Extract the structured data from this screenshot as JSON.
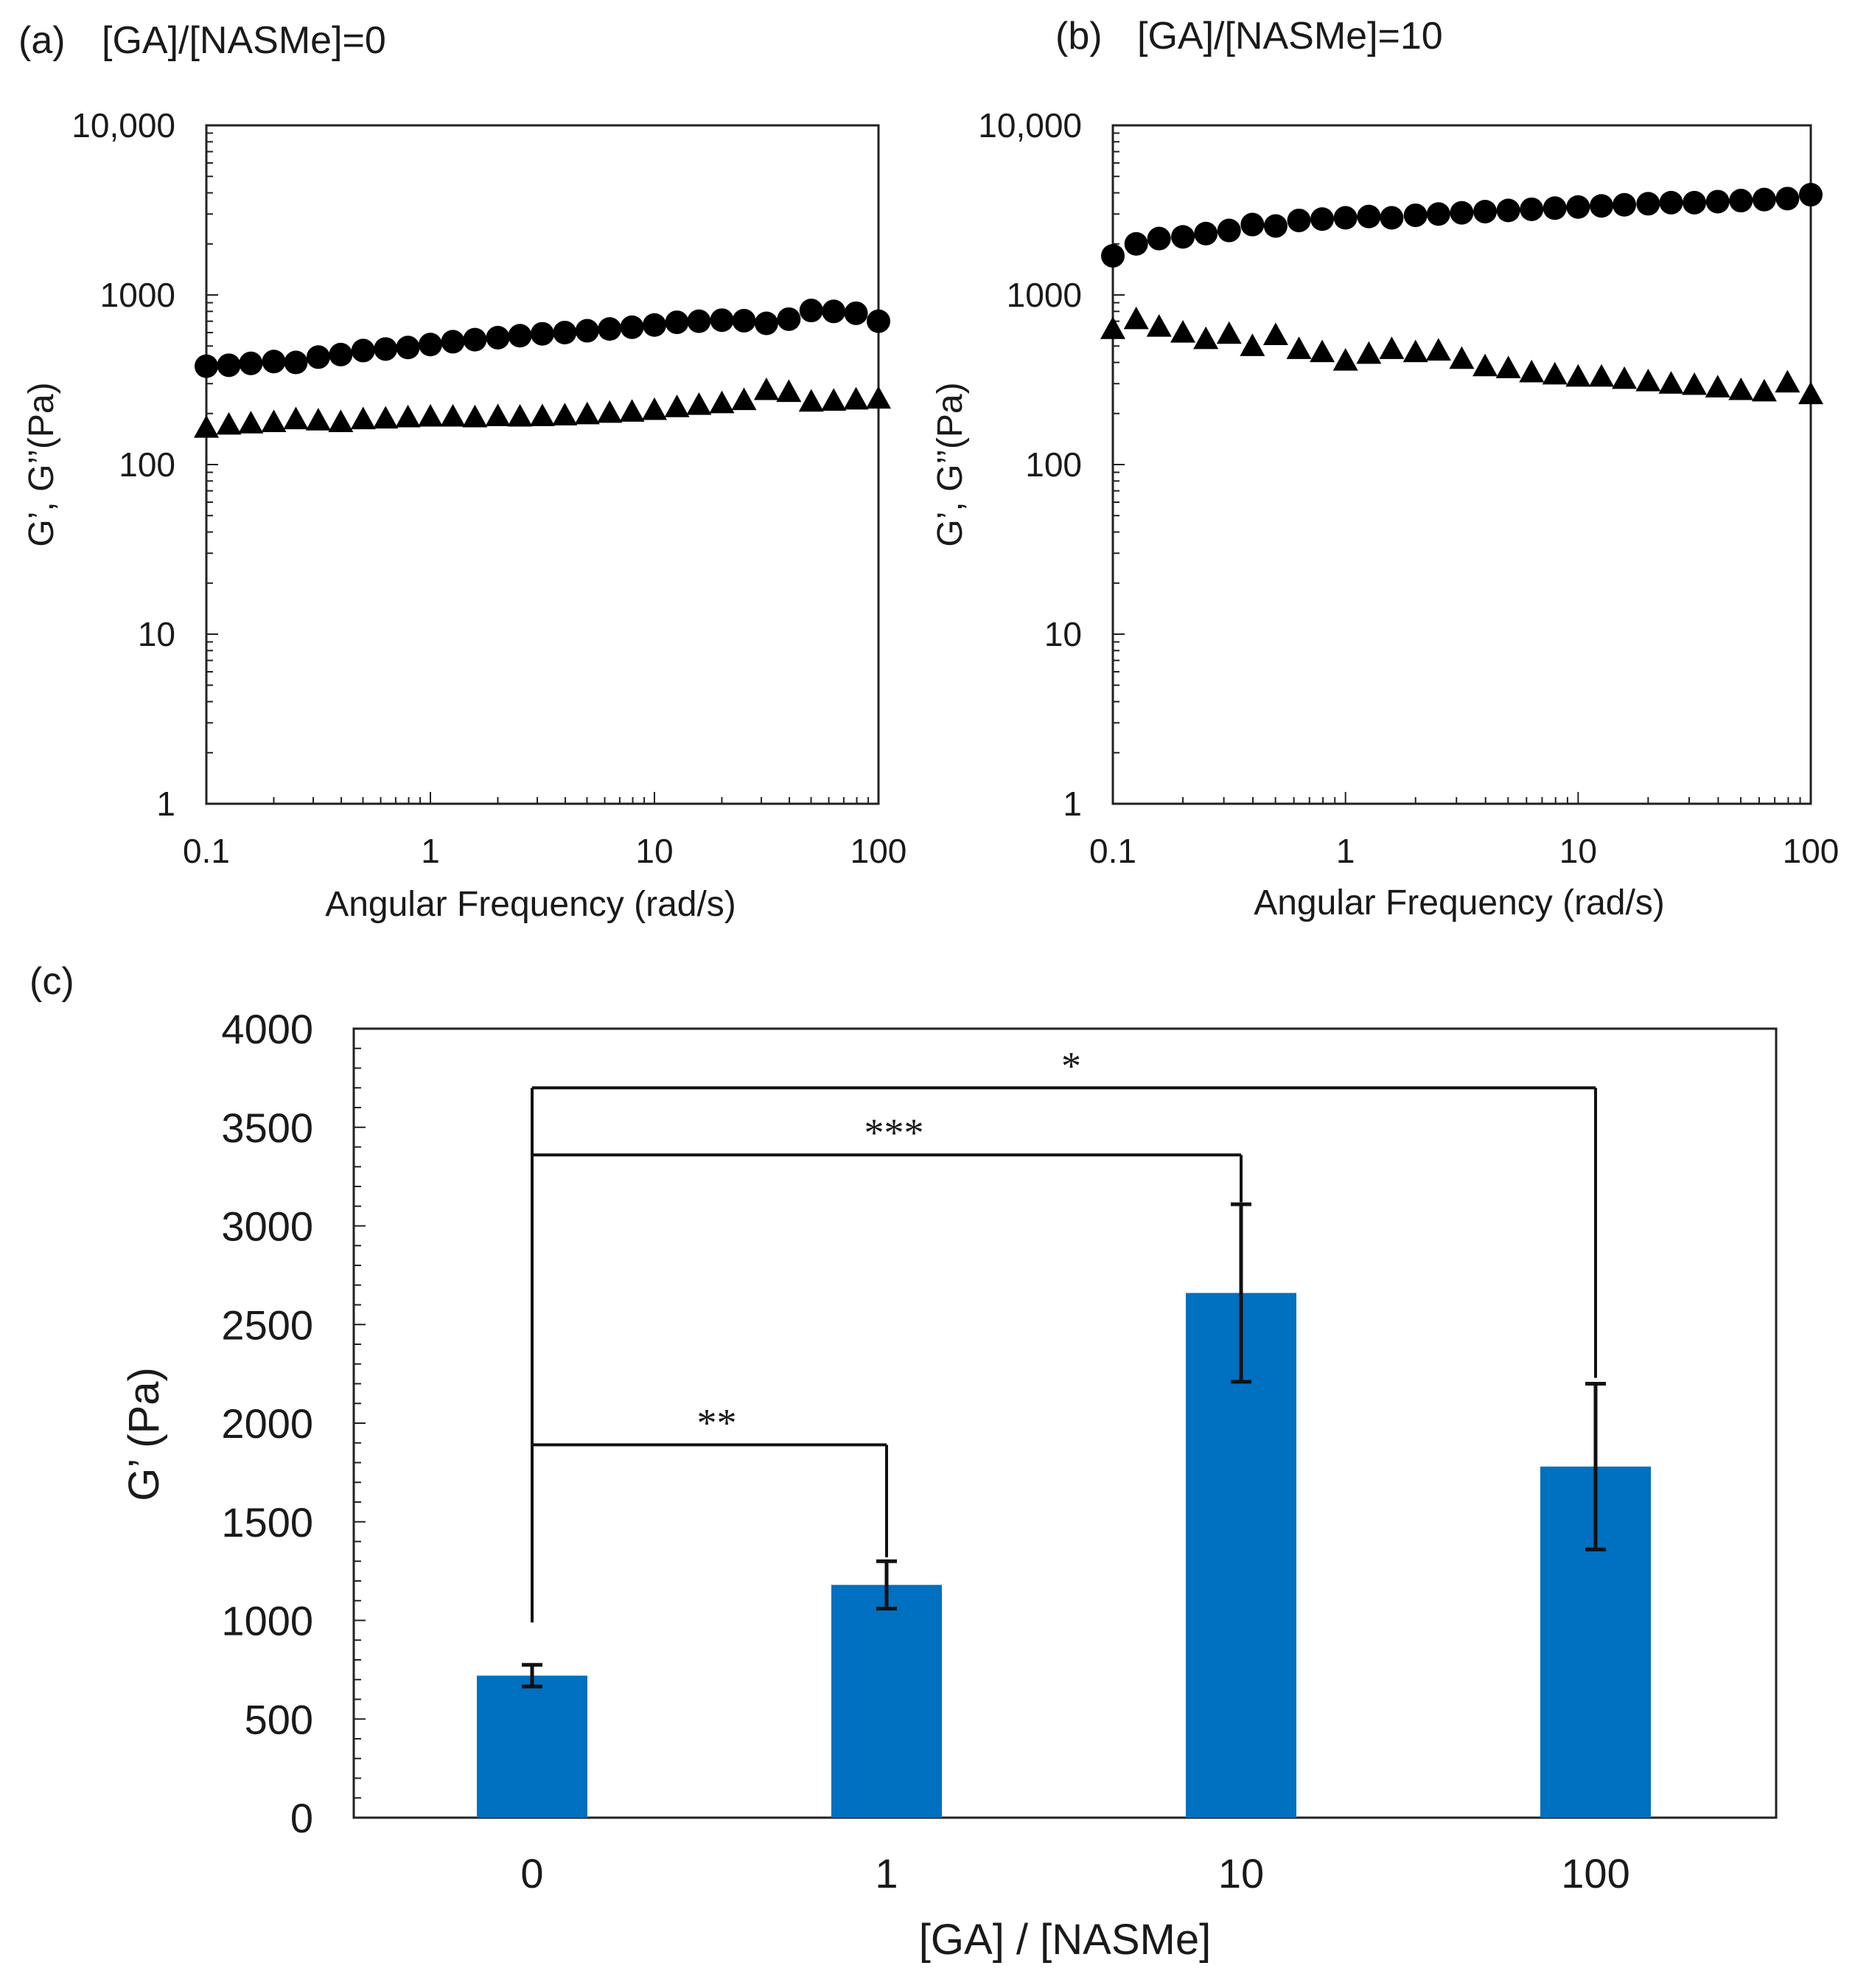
{
  "chart_data": [
    {
      "id": "a",
      "type": "scatter",
      "panel_label": "(a)",
      "title": "[GA]/[NASMe]=0",
      "xlabel": "Angular Frequency (rad/s)",
      "ylabel": "G’, G’’(Pa)",
      "xscale": "log",
      "yscale": "log",
      "xlim": [
        0.1,
        100
      ],
      "ylim": [
        1,
        10000
      ],
      "xticks": [
        0.1,
        1,
        10,
        100
      ],
      "xtick_labels": [
        "0.1",
        "1",
        "10",
        "100"
      ],
      "yticks": [
        1,
        10,
        100,
        1000,
        10000
      ],
      "ytick_labels": [
        "1",
        "10",
        "100",
        "1000",
        "10,000"
      ],
      "series": [
        {
          "name": "G'",
          "marker": "circle",
          "x": [
            0.1,
            0.126,
            0.158,
            0.2,
            0.251,
            0.316,
            0.398,
            0.501,
            0.631,
            0.794,
            1,
            1.26,
            1.58,
            2,
            2.51,
            3.16,
            3.98,
            5.01,
            6.31,
            7.94,
            10,
            12.6,
            15.8,
            20,
            25.1,
            31.6,
            39.8,
            50.1,
            63.1,
            79.4,
            100
          ],
          "y": [
            380,
            385,
            395,
            405,
            400,
            430,
            445,
            470,
            480,
            490,
            510,
            530,
            545,
            560,
            575,
            590,
            600,
            615,
            630,
            645,
            665,
            690,
            700,
            710,
            705,
            680,
            720,
            810,
            800,
            780,
            700
          ]
        },
        {
          "name": "G''",
          "marker": "triangle",
          "x": [
            0.1,
            0.126,
            0.158,
            0.2,
            0.251,
            0.316,
            0.398,
            0.501,
            0.631,
            0.794,
            1,
            1.26,
            1.58,
            2,
            2.51,
            3.16,
            3.98,
            5.01,
            6.31,
            7.94,
            10,
            12.6,
            15.8,
            20,
            25.1,
            31.6,
            39.8,
            50.1,
            63.1,
            79.4,
            100
          ],
          "y": [
            165,
            172,
            175,
            178,
            185,
            182,
            178,
            185,
            187,
            190,
            192,
            192,
            190,
            193,
            192,
            193,
            195,
            198,
            202,
            205,
            210,
            218,
            225,
            230,
            240,
            275,
            268,
            235,
            238,
            242,
            245
          ]
        }
      ]
    },
    {
      "id": "b",
      "type": "scatter",
      "panel_label": "(b)",
      "title": "[GA]/[NASMe]=10",
      "xlabel": "Angular Frequency (rad/s)",
      "ylabel": "G’, G’’(Pa)",
      "xscale": "log",
      "yscale": "log",
      "xlim": [
        0.1,
        100
      ],
      "ylim": [
        1,
        10000
      ],
      "xticks": [
        0.1,
        1,
        10,
        100
      ],
      "xtick_labels": [
        "0.1",
        "1",
        "10",
        "100"
      ],
      "yticks": [
        1,
        10,
        100,
        1000,
        10000
      ],
      "ytick_labels": [
        "1",
        "10",
        "100",
        "1000",
        "10,000"
      ],
      "series": [
        {
          "name": "G'",
          "marker": "circle",
          "x": [
            0.1,
            0.126,
            0.158,
            0.2,
            0.251,
            0.316,
            0.398,
            0.501,
            0.631,
            0.794,
            1,
            1.26,
            1.58,
            2,
            2.51,
            3.16,
            3.98,
            5.01,
            6.31,
            7.94,
            10,
            12.6,
            15.8,
            20,
            25.1,
            31.6,
            39.8,
            50.1,
            63.1,
            79.4,
            100
          ],
          "y": [
            1700,
            2000,
            2150,
            2200,
            2300,
            2400,
            2600,
            2550,
            2750,
            2800,
            2850,
            2900,
            2850,
            2950,
            3000,
            3050,
            3100,
            3150,
            3200,
            3250,
            3300,
            3350,
            3400,
            3450,
            3500,
            3500,
            3550,
            3600,
            3650,
            3700,
            3900
          ]
        },
        {
          "name": "G''",
          "marker": "triangle",
          "x": [
            0.1,
            0.126,
            0.158,
            0.2,
            0.251,
            0.316,
            0.398,
            0.501,
            0.631,
            0.794,
            1,
            1.26,
            1.58,
            2,
            2.51,
            3.16,
            3.98,
            5.01,
            6.31,
            7.94,
            10,
            12.6,
            15.8,
            20,
            25.1,
            31.6,
            39.8,
            50.1,
            63.1,
            79.4,
            100
          ],
          "y": [
            630,
            720,
            650,
            600,
            550,
            590,
            500,
            580,
            480,
            460,
            410,
            450,
            480,
            460,
            470,
            420,
            380,
            370,
            350,
            340,
            330,
            330,
            320,
            310,
            300,
            295,
            285,
            275,
            270,
            305,
            260
          ]
        }
      ]
    },
    {
      "id": "c",
      "type": "bar",
      "panel_label": "(c)",
      "xlabel": "[GA] / [NASMe]",
      "ylabel": "G’ (Pa)",
      "categories": [
        "0",
        "1",
        "10",
        "100"
      ],
      "values": [
        720,
        1180,
        2660,
        1780
      ],
      "errors": [
        55,
        120,
        450,
        420
      ],
      "ylim": [
        0,
        4000
      ],
      "yticks": [
        0,
        500,
        1000,
        1500,
        2000,
        2500,
        3000,
        3500,
        4000
      ],
      "ytick_labels": [
        "0",
        "500",
        "1000",
        "1500",
        "2000",
        "2500",
        "3000",
        "3500",
        "4000"
      ],
      "bar_color": "#0070c0",
      "significance": [
        {
          "from": "0",
          "to": "1",
          "label": "**",
          "y": 1890,
          "start_y": 990,
          "end_y": 1320
        },
        {
          "from": "0",
          "to": "10",
          "label": "***",
          "y": 3360,
          "start_y": 990,
          "end_y": 3120
        },
        {
          "from": "0",
          "to": "100",
          "label": "*",
          "y": 3700,
          "start_y": 990,
          "end_y": 2230
        }
      ]
    }
  ]
}
